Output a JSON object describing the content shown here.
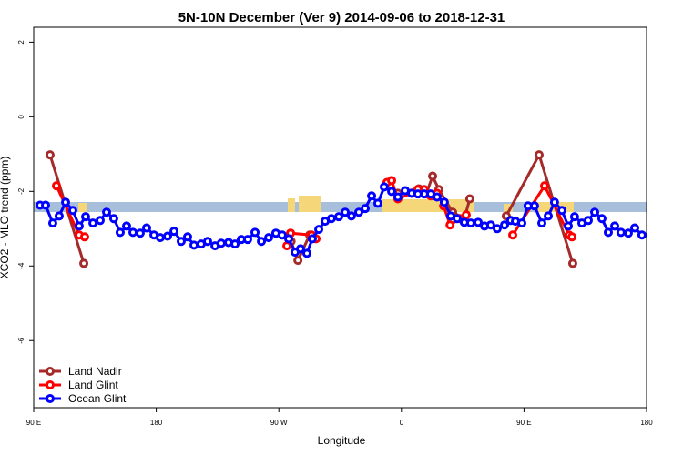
{
  "chart_data": {
    "type": "line",
    "title": "5N-10N December (Ver 9)   2014-09-06 to 2018-12-31",
    "x_label": "Longitude",
    "y_label": "XCO2 - MLO trend (ppm)",
    "xlim": [
      90,
      540
    ],
    "xticks": [
      {
        "value": 90,
        "label": "90 E"
      },
      {
        "value": 180,
        "label": "180"
      },
      {
        "value": 270,
        "label": "90 W"
      },
      {
        "value": 360,
        "label": "0"
      },
      {
        "value": 450,
        "label": "90 E"
      },
      {
        "value": 540,
        "label": "180"
      }
    ],
    "ylim": [
      -7.8,
      2.4
    ],
    "yticks": [
      -6,
      -4,
      -2,
      0,
      2
    ],
    "legend": "bottom-left",
    "series": [
      {
        "name": "Land Nadir",
        "color": "#a52a2a",
        "x": [
          102,
          126.8,
          null,
          279,
          284,
          292.6,
          null,
          357.4,
          372.8,
          378.2,
          382.9,
          387.5,
          397.6,
          406.2,
          410.2,
          null,
          437,
          461.1,
          485.8
        ],
        "values": [
          -1.02,
          -3.93,
          null,
          -3.34,
          -3.85,
          -3.17,
          null,
          -2.05,
          -1.93,
          -2.07,
          -1.59,
          -1.95,
          -2.56,
          -2.73,
          -2.2,
          null,
          -2.66,
          -1.02,
          -3.93
        ]
      },
      {
        "name": "Land Glint",
        "color": "#ff0000",
        "x": [
          106.7,
          123.4,
          127.4,
          null,
          275.9,
          278.6,
          294,
          297.3,
          null,
          349.4,
          352.8,
          357.4,
          367.5,
          372.1,
          376.8,
          381.5,
          386.2,
          391,
          395.7,
          403,
          407.6,
          null,
          441.7,
          465.1,
          483.1,
          485.2
        ],
        "values": [
          -1.85,
          -3.17,
          -3.22,
          null,
          -3.46,
          -3.12,
          -3.17,
          -3.27,
          null,
          -1.76,
          -1.71,
          -2.2,
          -2.05,
          -1.95,
          -1.95,
          -2.12,
          -2.05,
          -2.39,
          -2.9,
          -2.73,
          -2.63,
          null,
          -3.17,
          -1.85,
          -3.17,
          -3.22
        ]
      },
      {
        "name": "Ocean Glint",
        "color": "#0000ff",
        "x": [
          94.7,
          98.7,
          104,
          108.7,
          113.4,
          118.7,
          123.4,
          128.1,
          133.5,
          138.8,
          143.5,
          148.8,
          153.5,
          158.2,
          162.9,
          168.2,
          172.9,
          178.3,
          182.9,
          188.3,
          193,
          198.3,
          203,
          207.7,
          213,
          217.7,
          223.1,
          227.7,
          233.1,
          237.8,
          242.4,
          247.1,
          252.5,
          257.2,
          262.5,
          267.8,
          272.5,
          277.2,
          281.9,
          285.9,
          290.6,
          294.6,
          299.3,
          304,
          308.6,
          314,
          318.7,
          323.3,
          328.7,
          333.4,
          338.1,
          342.7,
          347.4,
          352.8,
          357.4,
          362.8,
          367.5,
          372.1,
          376.8,
          381.5,
          386.2,
          391.5,
          396.2,
          400.9,
          406.2,
          410.9,
          416.3,
          421,
          425.6,
          430.3,
          435.7,
          440.3,
          443.7,
          448.4,
          453,
          457.7,
          463.1,
          467.8,
          472.4,
          477.8,
          482.5,
          487.1,
          492.5,
          497.2,
          501.9,
          507.2,
          511.9,
          516.6,
          521.2,
          526.6,
          531.3,
          536.6
        ],
        "values": [
          -2.37,
          -2.37,
          -2.85,
          -2.66,
          -2.29,
          -2.51,
          -2.93,
          -2.68,
          -2.85,
          -2.78,
          -2.56,
          -2.73,
          -3.1,
          -2.93,
          -3.1,
          -3.12,
          -2.98,
          -3.17,
          -3.24,
          -3.2,
          -3.07,
          -3.34,
          -3.22,
          -3.44,
          -3.41,
          -3.34,
          -3.46,
          -3.39,
          -3.37,
          -3.41,
          -3.29,
          -3.29,
          -3.1,
          -3.34,
          -3.24,
          -3.12,
          -3.17,
          -3.27,
          -3.63,
          -3.54,
          -3.66,
          -3.27,
          -3.02,
          -2.8,
          -2.73,
          -2.68,
          -2.56,
          -2.66,
          -2.56,
          -2.46,
          -2.12,
          -2.32,
          -1.88,
          -2,
          -2.15,
          -1.98,
          -2.05,
          -2.07,
          -2.07,
          -2.07,
          -2.15,
          -2.29,
          -2.66,
          -2.73,
          -2.83,
          -2.85,
          -2.83,
          -2.93,
          -2.9,
          -3,
          -2.9,
          -2.78,
          -2.8,
          -2.85,
          -2.39,
          -2.39,
          -2.85,
          -2.66,
          -2.29,
          -2.51,
          -2.93,
          -2.68,
          -2.85,
          -2.78,
          -2.56,
          -2.73,
          -3.1,
          -2.93,
          -3.1,
          -3.12,
          -2.98,
          -3.17
        ]
      }
    ]
  }
}
